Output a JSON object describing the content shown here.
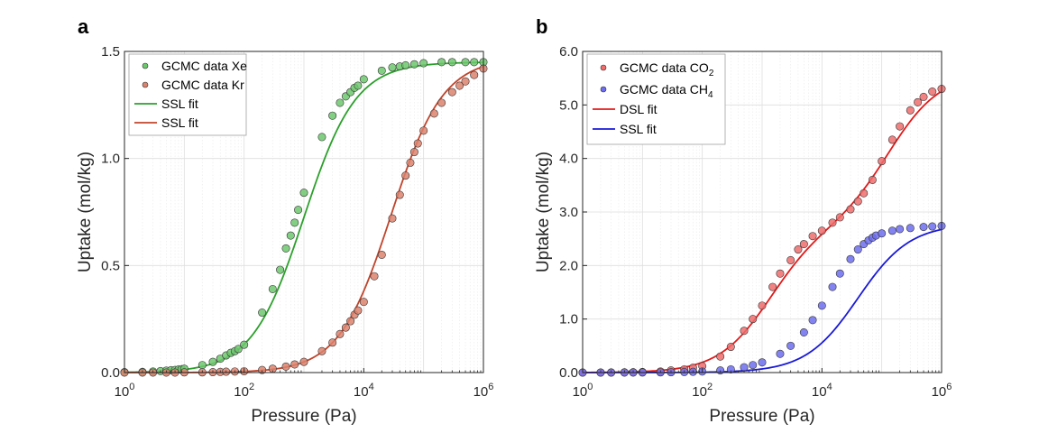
{
  "chart_data": [
    {
      "type": "scatter",
      "panel_label": "a",
      "xscale": "log",
      "xlim": [
        1,
        1000000
      ],
      "ylim": [
        0,
        1.5
      ],
      "xticks": [
        1,
        100,
        10000,
        1000000
      ],
      "xtick_labels": [
        {
          "base": "10",
          "exp": "0"
        },
        {
          "base": "10",
          "exp": "2"
        },
        {
          "base": "10",
          "exp": "4"
        },
        {
          "base": "10",
          "exp": "6"
        }
      ],
      "yticks": [
        0,
        0.5,
        1.0,
        1.5
      ],
      "ytick_labels": [
        "0.0",
        "0.5",
        "1.0",
        "1.5"
      ],
      "xlabel": "Pressure (Pa)",
      "ylabel": "Uptake (mol/kg)",
      "grid": true,
      "legend_position": "top-left",
      "series": [
        {
          "name": "GCMC data Xe",
          "kind": "points",
          "color": "#3cb43c",
          "x": [
            1,
            2,
            3,
            4,
            5,
            6,
            7,
            8,
            9,
            10,
            20,
            30,
            40,
            50,
            60,
            70,
            80,
            100,
            200,
            300,
            400,
            500,
            600,
            700,
            800,
            1000,
            2000,
            3000,
            4000,
            5000,
            6000,
            7000,
            8000,
            10000,
            20000,
            30000,
            40000,
            50000,
            70000,
            100000,
            200000,
            300000,
            500000,
            700000,
            1000000
          ],
          "y": [
            0.002,
            0.003,
            0.005,
            0.007,
            0.009,
            0.011,
            0.012,
            0.014,
            0.016,
            0.018,
            0.035,
            0.05,
            0.065,
            0.08,
            0.092,
            0.1,
            0.11,
            0.13,
            0.28,
            0.39,
            0.48,
            0.58,
            0.64,
            0.7,
            0.76,
            0.84,
            1.1,
            1.2,
            1.26,
            1.29,
            1.31,
            1.33,
            1.34,
            1.37,
            1.41,
            1.425,
            1.43,
            1.435,
            1.44,
            1.445,
            1.45,
            1.45,
            1.45,
            1.45,
            1.45
          ]
        },
        {
          "name": "GCMC data Kr",
          "kind": "points",
          "color": "#d05a3c",
          "x": [
            1,
            2,
            3,
            5,
            7,
            10,
            20,
            30,
            40,
            50,
            70,
            100,
            200,
            300,
            500,
            700,
            1000,
            2000,
            3000,
            4000,
            5000,
            6000,
            7000,
            8000,
            10000,
            15000,
            20000,
            30000,
            40000,
            50000,
            60000,
            70000,
            80000,
            100000,
            150000,
            200000,
            300000,
            400000,
            500000,
            700000,
            1000000
          ],
          "y": [
            0.0,
            0.0,
            0.0,
            0.0,
            0.0,
            0.001,
            0.001,
            0.002,
            0.003,
            0.004,
            0.005,
            0.006,
            0.012,
            0.018,
            0.028,
            0.038,
            0.05,
            0.1,
            0.14,
            0.18,
            0.21,
            0.24,
            0.27,
            0.29,
            0.33,
            0.45,
            0.55,
            0.72,
            0.83,
            0.92,
            0.98,
            1.03,
            1.07,
            1.13,
            1.21,
            1.26,
            1.31,
            1.34,
            1.36,
            1.39,
            1.42
          ]
        },
        {
          "name": "SSL fit",
          "kind": "line",
          "color": "#2ca02c",
          "model": {
            "qsat": 1.45,
            "b": 0.001
          }
        },
        {
          "name": "SSL fit",
          "kind": "line",
          "color": "#c0442a",
          "model": {
            "qsat": 1.47,
            "b": 3.5e-05
          }
        }
      ]
    },
    {
      "type": "scatter",
      "panel_label": "b",
      "xscale": "log",
      "xlim": [
        1,
        1000000
      ],
      "ylim": [
        0,
        6
      ],
      "xticks": [
        1,
        100,
        10000,
        1000000
      ],
      "xtick_labels": [
        {
          "base": "10",
          "exp": "0"
        },
        {
          "base": "10",
          "exp": "2"
        },
        {
          "base": "10",
          "exp": "4"
        },
        {
          "base": "10",
          "exp": "6"
        }
      ],
      "yticks": [
        0,
        1,
        2,
        3,
        4,
        5,
        6
      ],
      "ytick_labels": [
        "0.0",
        "1.0",
        "2.0",
        "3.0",
        "4.0",
        "5.0",
        "6.0"
      ],
      "xlabel": "Pressure (Pa)",
      "ylabel": "Uptake (mol/kg)",
      "grid": true,
      "legend_position": "top-left",
      "series": [
        {
          "name": "GCMC data CO",
          "name_sub": "2",
          "kind": "points",
          "color": "#e83c3c",
          "x": [
            1,
            2,
            3,
            5,
            7,
            10,
            20,
            30,
            50,
            70,
            100,
            200,
            300,
            500,
            700,
            1000,
            1500,
            2000,
            3000,
            4000,
            5000,
            7000,
            10000,
            15000,
            20000,
            30000,
            40000,
            50000,
            70000,
            100000,
            150000,
            200000,
            300000,
            400000,
            500000,
            700000,
            1000000
          ],
          "y": [
            0.0,
            0.001,
            0.002,
            0.004,
            0.006,
            0.01,
            0.02,
            0.04,
            0.06,
            0.09,
            0.12,
            0.3,
            0.48,
            0.78,
            1.0,
            1.25,
            1.6,
            1.85,
            2.1,
            2.3,
            2.4,
            2.55,
            2.65,
            2.8,
            2.9,
            3.05,
            3.2,
            3.35,
            3.6,
            3.95,
            4.35,
            4.6,
            4.9,
            5.05,
            5.15,
            5.25,
            5.3
          ]
        },
        {
          "name": "GCMC data CH",
          "name_sub": "4",
          "kind": "points",
          "color": "#3c3ce8",
          "x": [
            1,
            2,
            3,
            5,
            7,
            10,
            20,
            30,
            50,
            70,
            100,
            200,
            300,
            500,
            700,
            1000,
            2000,
            3000,
            5000,
            7000,
            10000,
            15000,
            20000,
            30000,
            40000,
            50000,
            60000,
            70000,
            80000,
            100000,
            150000,
            200000,
            300000,
            500000,
            700000,
            1000000
          ],
          "y": [
            0.0,
            0.0,
            0.0,
            0.001,
            0.001,
            0.002,
            0.004,
            0.006,
            0.01,
            0.014,
            0.02,
            0.04,
            0.06,
            0.1,
            0.14,
            0.19,
            0.35,
            0.5,
            0.75,
            0.98,
            1.25,
            1.6,
            1.85,
            2.12,
            2.3,
            2.4,
            2.47,
            2.52,
            2.56,
            2.6,
            2.65,
            2.68,
            2.7,
            2.72,
            2.73,
            2.74
          ]
        },
        {
          "name": "DSL fit",
          "kind": "line",
          "color": "#e41a1a",
          "model": {
            "q1": 2.7,
            "b1": 0.00075,
            "q2": 2.9,
            "b2": 7.5e-06
          }
        },
        {
          "name": "SSL fit",
          "kind": "line",
          "color": "#1a1ad8",
          "model": {
            "qsat": 2.78,
            "b": 2.5e-05
          }
        }
      ]
    }
  ]
}
